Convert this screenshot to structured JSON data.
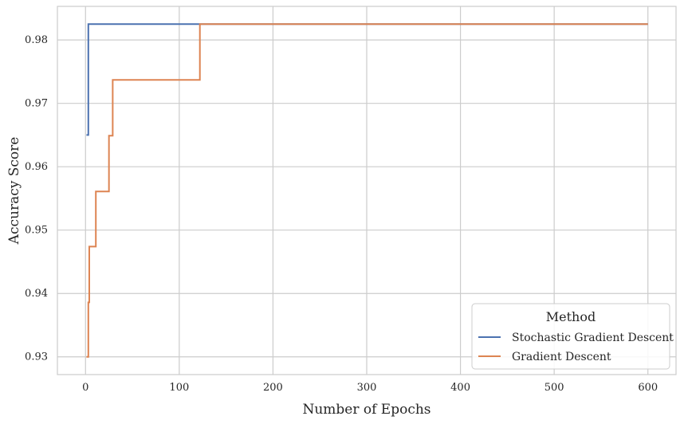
{
  "chart_data": {
    "type": "line",
    "xlabel": "Number of Epochs",
    "ylabel": "Accuracy Score",
    "xlim": [
      -30,
      630
    ],
    "ylim": [
      0.9272,
      0.9853
    ],
    "xticks": [
      0,
      100,
      200,
      300,
      400,
      500,
      600
    ],
    "yticks": [
      0.93,
      0.94,
      0.95,
      0.96,
      0.97,
      0.98
    ],
    "grid": true,
    "legend": {
      "title": "Method",
      "placement": "bottom-right"
    },
    "series": [
      {
        "name": "Stochastic Gradient Descent",
        "color": "#4c72b0",
        "x": [
          1,
          3,
          3,
          600
        ],
        "y": [
          0.965,
          0.965,
          0.9825,
          0.9825
        ]
      },
      {
        "name": "Gradient Descent",
        "color": "#dd8452",
        "x": [
          1,
          3,
          3,
          4,
          4,
          11,
          11,
          25,
          25,
          29,
          29,
          122,
          122,
          600
        ],
        "y": [
          0.93,
          0.93,
          0.9386,
          0.9386,
          0.9474,
          0.9474,
          0.9561,
          0.9561,
          0.9649,
          0.9649,
          0.9737,
          0.9737,
          0.9825,
          0.9825
        ]
      }
    ]
  }
}
